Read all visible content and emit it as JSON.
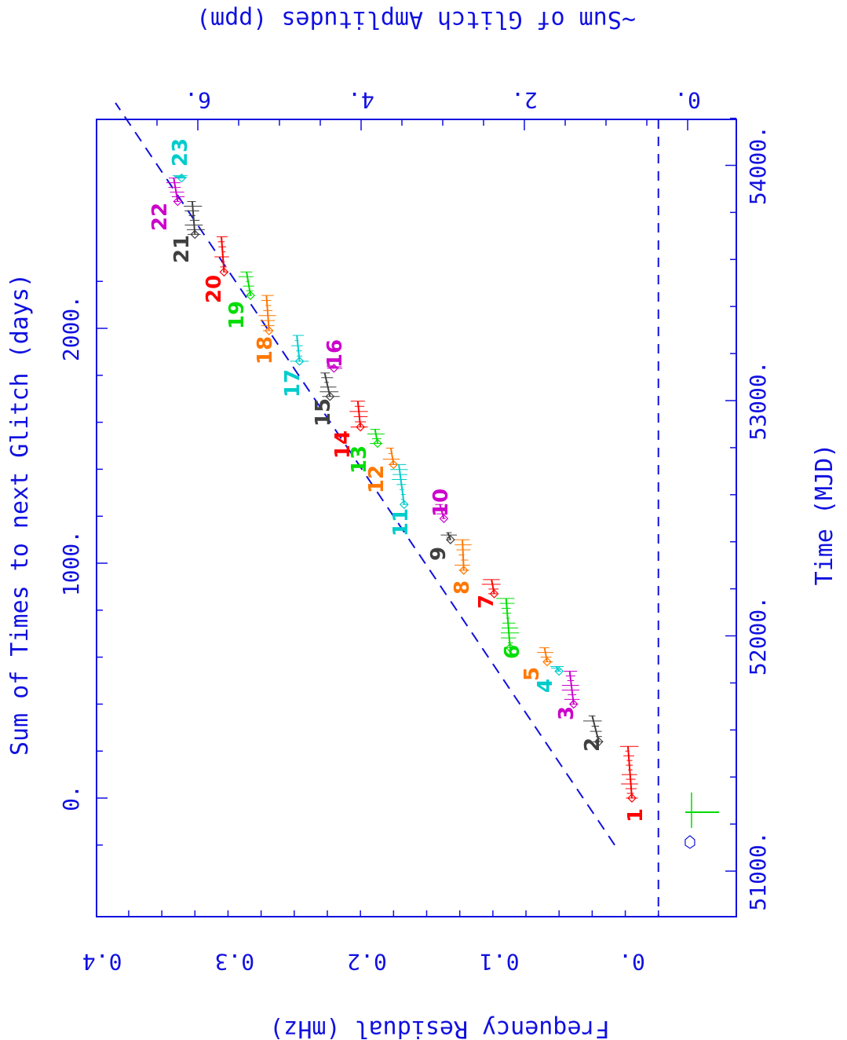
{
  "chart_data": {
    "type": "scatter",
    "orientation_note": "figure rotated 90 degrees clockwise",
    "axes": {
      "left": {
        "label": "Sum of Times to next Glitch (days)",
        "ticks": [
          "0.",
          "1000.",
          "2000."
        ],
        "range": [
          -200,
          2300
        ]
      },
      "right": {
        "label": "Time (MJD)",
        "ticks": [
          "51000.",
          "52000.",
          "53000.",
          "54000."
        ],
        "range": [
          51200,
          54200
        ]
      },
      "bottom": {
        "label": "Frequency Residual (mHz)",
        "ticks": [
          "0.",
          "0.1",
          "0.2",
          "0.3",
          "0.4"
        ],
        "range": [
          -0.02,
          0.4
        ]
      },
      "top": {
        "label": "~Sum of Glitch Amplitudes (ppm)",
        "ticks": [
          "0.",
          "2.",
          "4.",
          "6."
        ],
        "range": [
          -0.2,
          6.6
        ]
      }
    },
    "glitch_labels": [
      {
        "name": "1",
        "color": "#ff0000"
      },
      {
        "name": "2",
        "color": "#404040"
      },
      {
        "name": "3",
        "color": "#cc00cc"
      },
      {
        "name": "4",
        "color": "#00cccc"
      },
      {
        "name": "5",
        "color": "#ff7700"
      },
      {
        "name": "6",
        "color": "#00dd00"
      },
      {
        "name": "7",
        "color": "#ff0000"
      },
      {
        "name": "8",
        "color": "#ff7700"
      },
      {
        "name": "9",
        "color": "#404040"
      },
      {
        "name": "10",
        "color": "#cc00cc"
      },
      {
        "name": "11",
        "color": "#00cccc"
      },
      {
        "name": "12",
        "color": "#ff7700"
      },
      {
        "name": "13",
        "color": "#00dd00"
      },
      {
        "name": "14",
        "color": "#ff0000"
      },
      {
        "name": "15",
        "color": "#404040"
      },
      {
        "name": "16",
        "color": "#cc00cc"
      },
      {
        "name": "17",
        "color": "#00cccc"
      },
      {
        "name": "18",
        "color": "#ff7700"
      },
      {
        "name": "19",
        "color": "#00dd00"
      },
      {
        "name": "20",
        "color": "#ff0000"
      },
      {
        "name": "21",
        "color": "#404040"
      },
      {
        "name": "22",
        "color": "#cc00cc"
      },
      {
        "name": "23",
        "color": "#00cccc"
      }
    ],
    "segments": [
      {
        "g": "1",
        "color": "#ff0000",
        "x": [
          0,
          220
        ],
        "y": [
          0.0,
          0.003
        ]
      },
      {
        "g": "2",
        "color": "#404040",
        "x": [
          240,
          350
        ],
        "y": [
          0.025,
          0.03
        ]
      },
      {
        "g": "3",
        "color": "#cc00cc",
        "x": [
          400,
          540
        ],
        "y": [
          0.044,
          0.047
        ]
      },
      {
        "g": "4",
        "color": "#00cccc",
        "x": [
          540,
          560
        ],
        "y": [
          0.055,
          0.057
        ]
      },
      {
        "g": "5",
        "color": "#ff7700",
        "x": [
          580,
          640
        ],
        "y": [
          0.064,
          0.066
        ]
      },
      {
        "g": "6",
        "color": "#00dd00",
        "x": [
          640,
          850
        ],
        "y": [
          0.092,
          0.095
        ]
      },
      {
        "g": "7",
        "color": "#ff0000",
        "x": [
          870,
          930
        ],
        "y": [
          0.104,
          0.106
        ]
      },
      {
        "g": "8",
        "color": "#ff7700",
        "x": [
          970,
          1100
        ],
        "y": [
          0.127,
          0.128
        ]
      },
      {
        "g": "9",
        "color": "#404040",
        "x": [
          1100,
          1130
        ],
        "y": [
          0.137,
          0.139
        ]
      },
      {
        "g": "10",
        "color": "#cc00cc",
        "x": [
          1190,
          1250
        ],
        "y": [
          0.142,
          0.145
        ]
      },
      {
        "g": "11",
        "color": "#00cccc",
        "x": [
          1250,
          1420
        ],
        "y": [
          0.172,
          0.176
        ]
      },
      {
        "g": "12",
        "color": "#ff7700",
        "x": [
          1420,
          1490
        ],
        "y": [
          0.18,
          0.182
        ]
      },
      {
        "g": "13",
        "color": "#00dd00",
        "x": [
          1510,
          1570
        ],
        "y": [
          0.192,
          0.194
        ]
      },
      {
        "g": "14",
        "color": "#ff0000",
        "x": [
          1580,
          1690
        ],
        "y": [
          0.205,
          0.207
        ]
      },
      {
        "g": "15",
        "color": "#404040",
        "x": [
          1710,
          1810
        ],
        "y": [
          0.228,
          0.232
        ]
      },
      {
        "g": "16",
        "color": "#cc00cc",
        "x": [
          1830,
          1840
        ],
        "y": [
          0.225,
          0.226
        ]
      },
      {
        "g": "17",
        "color": "#00cccc",
        "x": [
          1860,
          1970
        ],
        "y": [
          0.251,
          0.253
        ]
      },
      {
        "g": "18",
        "color": "#ff7700",
        "x": [
          1990,
          2140
        ],
        "y": [
          0.274,
          0.276
        ]
      },
      {
        "g": "19",
        "color": "#00dd00",
        "x": [
          2140,
          2240
        ],
        "y": [
          0.288,
          0.291
        ]
      },
      {
        "g": "20",
        "color": "#ff0000",
        "x": [
          2240,
          2390
        ],
        "y": [
          0.308,
          0.31
        ]
      },
      {
        "g": "21",
        "color": "#404040",
        "x": [
          2400,
          2540
        ],
        "y": [
          0.33,
          0.332
        ]
      },
      {
        "g": "22",
        "color": "#cc00cc",
        "x": [
          2540,
          2640
        ],
        "y": [
          0.343,
          0.346
        ]
      },
      {
        "g": "23",
        "color": "#00cccc",
        "x": [
          2640,
          2650
        ],
        "y": [
          0.34,
          0.342
        ]
      }
    ],
    "reference_lines": [
      {
        "style": "dashed",
        "x": [
          -200,
          2960
        ],
        "y": [
          0.013,
          0.39
        ]
      },
      {
        "style": "dashed",
        "y_const": -0.02
      }
    ],
    "grid": false,
    "legend": "none"
  }
}
